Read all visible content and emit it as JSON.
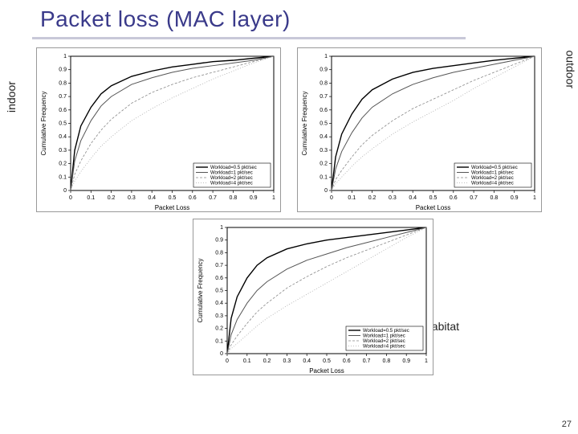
{
  "slide": {
    "title": "Packet loss (MAC layer)",
    "page_number": "27",
    "underline_color": "#c8c8d8",
    "title_color": "#3a3a8a"
  },
  "labels": {
    "indoor": "indoor",
    "outdoor": "outdoor",
    "habitat": "habitat"
  },
  "chart_common": {
    "xlabel": "Packet Loss",
    "ylabel": "Cumulative Frequency",
    "xlim": [
      0,
      1
    ],
    "ylim": [
      0,
      1
    ],
    "xtick_step": 0.1,
    "ytick_step": 0.1,
    "xticks": [
      "0",
      "0.1",
      "0.2",
      "0.3",
      "0.4",
      "0.5",
      "0.6",
      "0.7",
      "0.8",
      "0.9",
      "1"
    ],
    "yticks": [
      "0",
      "0.1",
      "0.2",
      "0.3",
      "0.4",
      "0.5",
      "0.6",
      "0.7",
      "0.8",
      "0.9",
      "1"
    ],
    "background_color": "#ffffff",
    "border_color": "#000000",
    "line_colors": [
      "#000000",
      "#555555",
      "#888888",
      "#aaaaaa"
    ],
    "line_widths": [
      1.4,
      1.0,
      0.8,
      0.8
    ],
    "line_dashes": [
      "",
      "",
      "3,2",
      "1,2"
    ],
    "legend_items": [
      "Workload=0.5 pkt/sec",
      "Workload=1 pkt/sec",
      "Workload=2 pkt/sec",
      "Workload=4 pkt/sec"
    ],
    "legend_box_border": "#000000"
  },
  "charts": {
    "indoor": {
      "type": "line",
      "series": [
        {
          "x": [
            0,
            0.02,
            0.05,
            0.1,
            0.15,
            0.2,
            0.3,
            0.4,
            0.5,
            0.6,
            0.7,
            0.8,
            0.9,
            1.0
          ],
          "y": [
            0,
            0.3,
            0.48,
            0.62,
            0.72,
            0.78,
            0.85,
            0.89,
            0.92,
            0.94,
            0.96,
            0.97,
            0.985,
            1.0
          ]
        },
        {
          "x": [
            0,
            0.02,
            0.05,
            0.1,
            0.15,
            0.2,
            0.3,
            0.4,
            0.5,
            0.6,
            0.7,
            0.8,
            0.9,
            1.0
          ],
          "y": [
            0,
            0.22,
            0.37,
            0.52,
            0.63,
            0.7,
            0.79,
            0.84,
            0.88,
            0.91,
            0.93,
            0.95,
            0.97,
            1.0
          ]
        },
        {
          "x": [
            0,
            0.02,
            0.05,
            0.1,
            0.15,
            0.2,
            0.3,
            0.4,
            0.5,
            0.6,
            0.7,
            0.8,
            0.9,
            1.0
          ],
          "y": [
            0,
            0.12,
            0.22,
            0.35,
            0.45,
            0.53,
            0.65,
            0.73,
            0.79,
            0.84,
            0.88,
            0.92,
            0.96,
            1.0
          ]
        },
        {
          "x": [
            0,
            0.02,
            0.05,
            0.1,
            0.15,
            0.2,
            0.3,
            0.4,
            0.5,
            0.6,
            0.7,
            0.8,
            0.9,
            1.0
          ],
          "y": [
            0,
            0.07,
            0.14,
            0.24,
            0.33,
            0.4,
            0.52,
            0.61,
            0.69,
            0.76,
            0.83,
            0.89,
            0.95,
            1.0
          ]
        }
      ]
    },
    "outdoor": {
      "type": "line",
      "series": [
        {
          "x": [
            0,
            0.02,
            0.05,
            0.1,
            0.15,
            0.2,
            0.3,
            0.4,
            0.5,
            0.6,
            0.7,
            0.8,
            0.9,
            1.0
          ],
          "y": [
            0,
            0.25,
            0.42,
            0.57,
            0.68,
            0.75,
            0.83,
            0.88,
            0.91,
            0.93,
            0.95,
            0.97,
            0.985,
            1.0
          ]
        },
        {
          "x": [
            0,
            0.02,
            0.05,
            0.1,
            0.15,
            0.2,
            0.3,
            0.4,
            0.5,
            0.6,
            0.7,
            0.8,
            0.9,
            1.0
          ],
          "y": [
            0,
            0.16,
            0.29,
            0.43,
            0.54,
            0.62,
            0.72,
            0.79,
            0.84,
            0.88,
            0.91,
            0.94,
            0.97,
            1.0
          ]
        },
        {
          "x": [
            0,
            0.02,
            0.05,
            0.1,
            0.15,
            0.2,
            0.3,
            0.4,
            0.5,
            0.6,
            0.7,
            0.8,
            0.9,
            1.0
          ],
          "y": [
            0,
            0.08,
            0.15,
            0.25,
            0.34,
            0.41,
            0.52,
            0.61,
            0.68,
            0.75,
            0.82,
            0.88,
            0.94,
            1.0
          ]
        },
        {
          "x": [
            0,
            0.02,
            0.05,
            0.1,
            0.15,
            0.2,
            0.3,
            0.4,
            0.5,
            0.6,
            0.7,
            0.8,
            0.9,
            1.0
          ],
          "y": [
            0,
            0.05,
            0.1,
            0.18,
            0.25,
            0.31,
            0.42,
            0.51,
            0.59,
            0.67,
            0.76,
            0.84,
            0.92,
            1.0
          ]
        }
      ]
    },
    "habitat": {
      "type": "line",
      "series": [
        {
          "x": [
            0,
            0.02,
            0.05,
            0.1,
            0.15,
            0.2,
            0.3,
            0.4,
            0.5,
            0.6,
            0.7,
            0.8,
            0.9,
            1.0
          ],
          "y": [
            0,
            0.28,
            0.45,
            0.6,
            0.7,
            0.76,
            0.83,
            0.87,
            0.9,
            0.92,
            0.94,
            0.96,
            0.98,
            1.0
          ]
        },
        {
          "x": [
            0,
            0.02,
            0.05,
            0.1,
            0.15,
            0.2,
            0.3,
            0.4,
            0.5,
            0.6,
            0.7,
            0.8,
            0.9,
            1.0
          ],
          "y": [
            0,
            0.15,
            0.27,
            0.4,
            0.5,
            0.57,
            0.67,
            0.74,
            0.79,
            0.84,
            0.88,
            0.92,
            0.96,
            1.0
          ]
        },
        {
          "x": [
            0,
            0.02,
            0.05,
            0.1,
            0.15,
            0.2,
            0.3,
            0.4,
            0.5,
            0.6,
            0.7,
            0.8,
            0.9,
            1.0
          ],
          "y": [
            0,
            0.07,
            0.14,
            0.24,
            0.33,
            0.4,
            0.52,
            0.61,
            0.69,
            0.76,
            0.82,
            0.88,
            0.94,
            1.0
          ]
        },
        {
          "x": [
            0,
            0.02,
            0.05,
            0.1,
            0.15,
            0.2,
            0.3,
            0.4,
            0.5,
            0.6,
            0.7,
            0.8,
            0.9,
            1.0
          ],
          "y": [
            0,
            0.04,
            0.08,
            0.15,
            0.22,
            0.28,
            0.38,
            0.47,
            0.56,
            0.65,
            0.74,
            0.83,
            0.92,
            1.0
          ]
        }
      ]
    }
  }
}
